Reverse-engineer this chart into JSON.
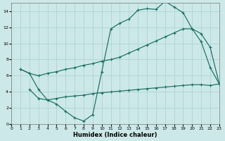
{
  "xlabel": "Humidex (Indice chaleur)",
  "bg_color": "#cce8e8",
  "line_color": "#1a6e62",
  "grid_color": "#aad0d0",
  "xlim": [
    0,
    23
  ],
  "ylim": [
    0,
    15
  ],
  "xticks": [
    0,
    1,
    2,
    3,
    4,
    5,
    6,
    7,
    8,
    9,
    10,
    11,
    12,
    13,
    14,
    15,
    16,
    17,
    18,
    19,
    20,
    21,
    22,
    23
  ],
  "yticks": [
    0,
    2,
    4,
    6,
    8,
    10,
    12,
    14
  ],
  "line1_x": [
    1,
    2,
    3,
    4,
    5,
    6,
    7,
    8,
    9,
    10,
    11,
    12,
    13,
    14,
    15,
    16,
    17,
    18,
    19,
    20,
    21,
    22,
    23
  ],
  "line1_y": [
    6.8,
    6.3,
    4.3,
    3.0,
    2.5,
    1.6,
    0.8,
    0.4,
    1.2,
    6.5,
    11.8,
    12.5,
    13.0,
    14.1,
    14.3,
    14.2,
    15.2,
    14.5,
    13.8,
    11.8,
    10.2,
    7.0,
    5.0
  ],
  "line2_x": [
    1,
    2,
    3,
    4,
    5,
    6,
    7,
    8,
    9,
    10,
    11,
    12,
    13,
    14,
    15,
    16,
    17,
    18,
    19,
    20,
    21,
    22,
    23
  ],
  "line2_y": [
    6.8,
    6.3,
    6.0,
    6.3,
    6.5,
    6.8,
    7.0,
    7.3,
    7.5,
    7.8,
    8.0,
    8.3,
    8.8,
    9.3,
    9.8,
    10.3,
    10.8,
    11.3,
    11.8,
    11.8,
    11.2,
    9.5,
    5.0
  ],
  "line3_x": [
    2,
    3,
    4,
    5,
    6,
    7,
    8,
    9,
    10,
    11,
    12,
    13,
    14,
    15,
    16,
    17,
    18,
    19,
    20,
    21,
    22,
    23
  ],
  "line3_y": [
    4.3,
    3.2,
    3.0,
    3.2,
    3.4,
    3.5,
    3.6,
    3.8,
    3.9,
    4.0,
    4.1,
    4.2,
    4.3,
    4.4,
    4.5,
    4.6,
    4.7,
    4.8,
    4.9,
    4.9,
    4.8,
    5.0
  ]
}
